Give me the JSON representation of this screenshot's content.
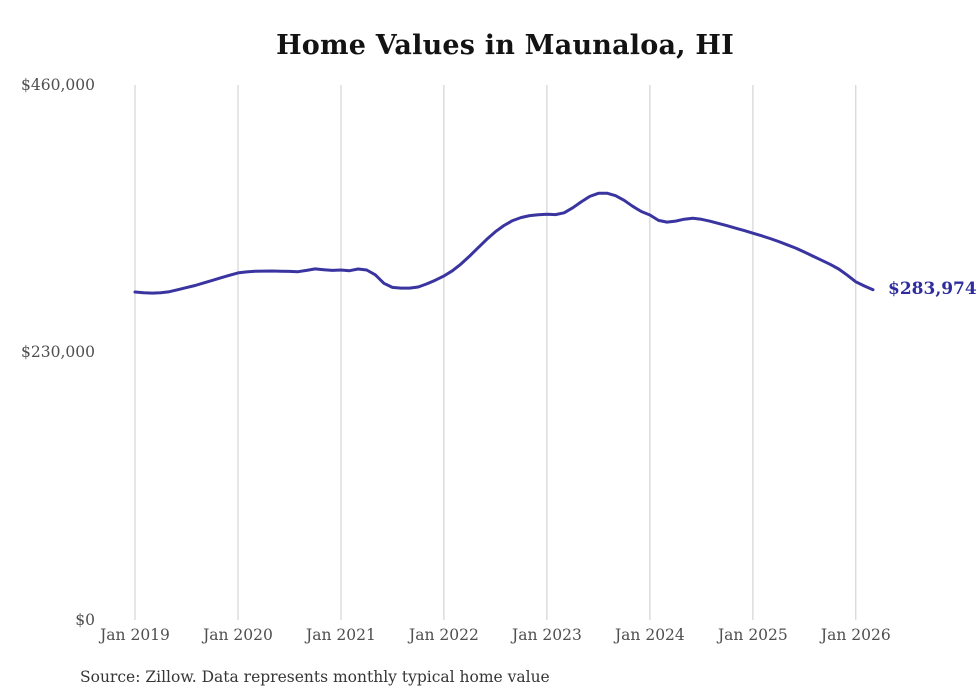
{
  "title": "Home Values in Maunaloa, HI",
  "end_label": "$283,974",
  "source_note": "Source: Zillow. Data represents monthly typical home value",
  "colors": {
    "line": "#3a34a0",
    "end_label": "#2f2c9f",
    "gridline": "#cccccc",
    "axis_text": "#4f4f4f",
    "title_text": "#131313",
    "source_text": "#363636"
  },
  "chart_data": {
    "type": "line",
    "title": "Home Values in Maunaloa, HI",
    "xlabel": "",
    "ylabel": "",
    "ylim": [
      0,
      460000
    ],
    "grid": "vertical-only",
    "legend": "none",
    "y_ticks": [
      {
        "label": "$460,000",
        "value": 460000
      },
      {
        "label": "$230,000",
        "value": 230000
      },
      {
        "label": "$0",
        "value": 0
      }
    ],
    "x_tick_labels": [
      "Jan 2019",
      "Jan 2020",
      "Jan 2021",
      "Jan 2022",
      "Jan 2023",
      "Jan 2024",
      "Jan 2025",
      "Jan 2026"
    ],
    "x_tick_month_indices": [
      0,
      12,
      24,
      36,
      48,
      60,
      72,
      84
    ],
    "series_name": "Typical home value",
    "months": [
      "2019-01",
      "2019-02",
      "2019-03",
      "2019-04",
      "2019-05",
      "2019-06",
      "2019-07",
      "2019-08",
      "2019-09",
      "2019-10",
      "2019-11",
      "2019-12",
      "2020-01",
      "2020-02",
      "2020-03",
      "2020-04",
      "2020-05",
      "2020-06",
      "2020-07",
      "2020-08",
      "2020-09",
      "2020-10",
      "2020-11",
      "2020-12",
      "2021-01",
      "2021-02",
      "2021-03",
      "2021-04",
      "2021-05",
      "2021-06",
      "2021-07",
      "2021-08",
      "2021-09",
      "2021-10",
      "2021-11",
      "2021-12",
      "2022-01",
      "2022-02",
      "2022-03",
      "2022-04",
      "2022-05",
      "2022-06",
      "2022-07",
      "2022-08",
      "2022-09",
      "2022-10",
      "2022-11",
      "2022-12",
      "2023-01",
      "2023-02",
      "2023-03",
      "2023-04",
      "2023-05",
      "2023-06",
      "2023-07",
      "2023-08",
      "2023-09",
      "2023-10",
      "2023-11",
      "2023-12",
      "2024-01",
      "2024-02",
      "2024-03",
      "2024-04",
      "2024-05",
      "2024-06",
      "2024-07",
      "2024-08",
      "2024-09",
      "2024-10",
      "2024-11",
      "2024-12",
      "2025-01",
      "2025-02",
      "2025-03",
      "2025-04",
      "2025-05",
      "2025-06",
      "2025-07",
      "2025-08",
      "2025-09",
      "2025-10",
      "2025-11",
      "2025-12",
      "2026-01",
      "2026-02",
      "2026-03"
    ],
    "values": [
      282000,
      281300,
      281100,
      281400,
      282300,
      284000,
      285800,
      287600,
      289800,
      292000,
      294200,
      296400,
      298400,
      299300,
      299800,
      300000,
      300100,
      299900,
      299700,
      299500,
      300600,
      301900,
      301200,
      300600,
      300900,
      300300,
      301800,
      300900,
      296800,
      289500,
      286000,
      285400,
      285400,
      286300,
      289000,
      292200,
      295800,
      300300,
      306200,
      313000,
      320200,
      327300,
      333900,
      339200,
      343400,
      346100,
      347700,
      348500,
      348900,
      348600,
      350100,
      354400,
      359500,
      364200,
      366900,
      367000,
      364800,
      360900,
      355700,
      351200,
      348200,
      343600,
      342100,
      343000,
      344600,
      345500,
      344500,
      342900,
      341000,
      339000,
      336900,
      334800,
      332600,
      330400,
      328000,
      325400,
      322600,
      319800,
      316400,
      312900,
      309400,
      305800,
      301800,
      296500,
      290800,
      287200,
      283974
    ],
    "last_value": 283974,
    "last_value_label": "$283,974"
  }
}
